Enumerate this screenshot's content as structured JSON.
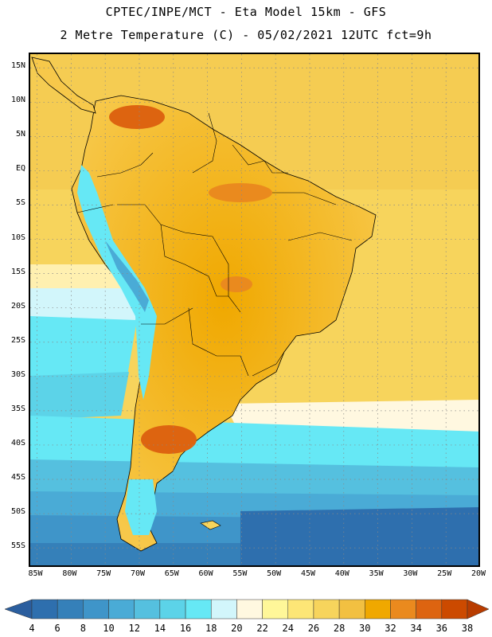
{
  "header": {
    "line1": "CPTEC/INPE/MCT -  Eta Model 15km - GFS",
    "line2": "2 Metre Temperature (C) - 05/02/2021 12UTC fct=9h"
  },
  "chart_data": {
    "type": "heatmap",
    "variable": "2 Metre Temperature",
    "units": "C",
    "model": "Eta Model 15km - GFS",
    "run": "05/02/2021 12UTC",
    "forecast": "fct=9h",
    "lon_range": [
      -86,
      -20
    ],
    "lat_range": [
      17,
      -58
    ],
    "x_ticks": [
      {
        "lon": -85,
        "label": "85W"
      },
      {
        "lon": -80,
        "label": "80W"
      },
      {
        "lon": -75,
        "label": "75W"
      },
      {
        "lon": -70,
        "label": "70W"
      },
      {
        "lon": -65,
        "label": "65W"
      },
      {
        "lon": -60,
        "label": "60W"
      },
      {
        "lon": -55,
        "label": "55W"
      },
      {
        "lon": -50,
        "label": "50W"
      },
      {
        "lon": -45,
        "label": "45W"
      },
      {
        "lon": -40,
        "label": "40W"
      },
      {
        "lon": -35,
        "label": "35W"
      },
      {
        "lon": -30,
        "label": "30W"
      },
      {
        "lon": -25,
        "label": "25W"
      },
      {
        "lon": -20,
        "label": "20W"
      }
    ],
    "y_ticks": [
      {
        "lat": 15,
        "label": "15N"
      },
      {
        "lat": 10,
        "label": "10N"
      },
      {
        "lat": 5,
        "label": "5N"
      },
      {
        "lat": 0,
        "label": "EQ"
      },
      {
        "lat": -5,
        "label": "5S"
      },
      {
        "lat": -10,
        "label": "10S"
      },
      {
        "lat": -15,
        "label": "15S"
      },
      {
        "lat": -20,
        "label": "20S"
      },
      {
        "lat": -25,
        "label": "25S"
      },
      {
        "lat": -30,
        "label": "30S"
      },
      {
        "lat": -35,
        "label": "35S"
      },
      {
        "lat": -40,
        "label": "40S"
      },
      {
        "lat": -45,
        "label": "45S"
      },
      {
        "lat": -50,
        "label": "50S"
      },
      {
        "lat": -55,
        "label": "55S"
      }
    ],
    "colorbar": {
      "labels": [
        "4",
        "6",
        "8",
        "10",
        "12",
        "14",
        "16",
        "18",
        "20",
        "22",
        "24",
        "26",
        "28",
        "30",
        "32",
        "34",
        "36",
        "38"
      ],
      "colors": [
        "#2E6FAE",
        "#3580B9",
        "#3F95C9",
        "#4AABD6",
        "#55C0DF",
        "#5CD3E8",
        "#66E8F5",
        "#D2F6FB",
        "#FFF8E0",
        "#FFF799",
        "#FDE676",
        "#F7D45C",
        "#F2C041",
        "#F0A800",
        "#EA8A1E",
        "#DD6410",
        "#CC4A00"
      ],
      "low_arrow_color": "#2B5E9E",
      "high_arrow_color": "#B83C00"
    }
  }
}
